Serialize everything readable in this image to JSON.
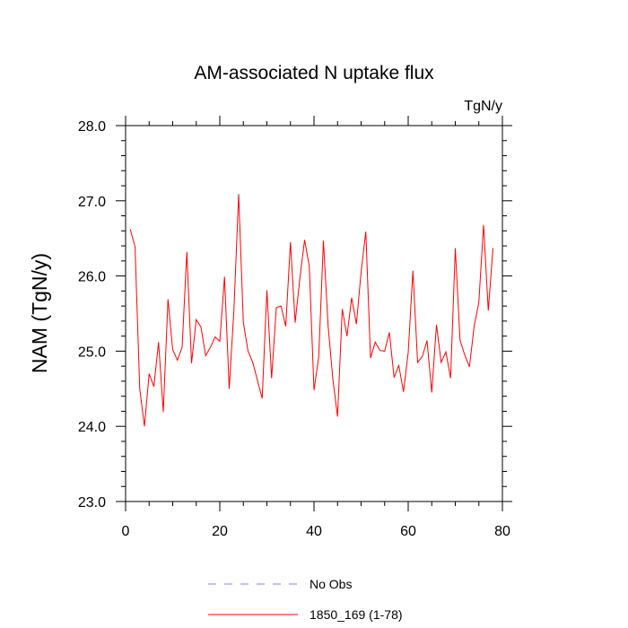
{
  "chart_data": {
    "type": "line",
    "title": "AM-associated N uptake flux",
    "units": "TgN/y",
    "xlabel": "",
    "ylabel": "NAM  (TgN/y)",
    "xlim": [
      0,
      80
    ],
    "ylim": [
      23.0,
      28.0
    ],
    "x_ticks": [
      0,
      20,
      40,
      60,
      80
    ],
    "x_tick_labels": [
      "0",
      "20",
      "40",
      "60",
      "80"
    ],
    "y_ticks": [
      23.0,
      24.0,
      25.0,
      26.0,
      27.0,
      28.0
    ],
    "y_tick_labels": [
      "23.0",
      "24.0",
      "25.0",
      "26.0",
      "27.0",
      "28.0"
    ],
    "grid": false,
    "legend_position": "bottom",
    "series": [
      {
        "name": "No Obs",
        "color": "#8080ff",
        "dashed": true,
        "values": []
      },
      {
        "name": "1850_169 (1-78)",
        "color": "#ff0000",
        "dashed": false,
        "x": [
          1,
          2,
          3,
          4,
          5,
          6,
          7,
          8,
          9,
          10,
          11,
          12,
          13,
          14,
          15,
          16,
          17,
          18,
          19,
          20,
          21,
          22,
          23,
          24,
          25,
          26,
          27,
          28,
          29,
          30,
          31,
          32,
          33,
          34,
          35,
          36,
          37,
          38,
          39,
          40,
          41,
          42,
          43,
          44,
          45,
          46,
          47,
          48,
          49,
          50,
          51,
          52,
          53,
          54,
          55,
          56,
          57,
          58,
          59,
          60,
          61,
          62,
          63,
          64,
          65,
          66,
          67,
          68,
          69,
          70,
          71,
          72,
          73,
          74,
          75,
          76,
          77,
          78
        ],
        "values": [
          26.62,
          26.39,
          24.5,
          24.0,
          24.7,
          24.53,
          25.12,
          24.19,
          25.69,
          25.02,
          24.88,
          25.05,
          26.32,
          24.84,
          25.42,
          25.32,
          24.94,
          25.05,
          25.19,
          25.13,
          25.99,
          24.5,
          25.55,
          27.09,
          25.38,
          25.0,
          24.85,
          24.61,
          24.37,
          25.81,
          24.64,
          25.58,
          25.6,
          25.33,
          26.45,
          25.38,
          25.97,
          26.48,
          26.13,
          24.48,
          24.92,
          26.47,
          25.33,
          24.63,
          24.13,
          25.56,
          25.2,
          25.71,
          25.36,
          26.05,
          26.59,
          24.91,
          25.12,
          25.01,
          25.0,
          25.25,
          24.65,
          24.81,
          24.46,
          24.98,
          26.07,
          24.85,
          24.93,
          25.14,
          24.45,
          25.35,
          24.85,
          24.99,
          24.64,
          26.37,
          25.15,
          24.95,
          24.79,
          25.33,
          25.65,
          26.68,
          25.54,
          26.37
        ]
      }
    ]
  }
}
